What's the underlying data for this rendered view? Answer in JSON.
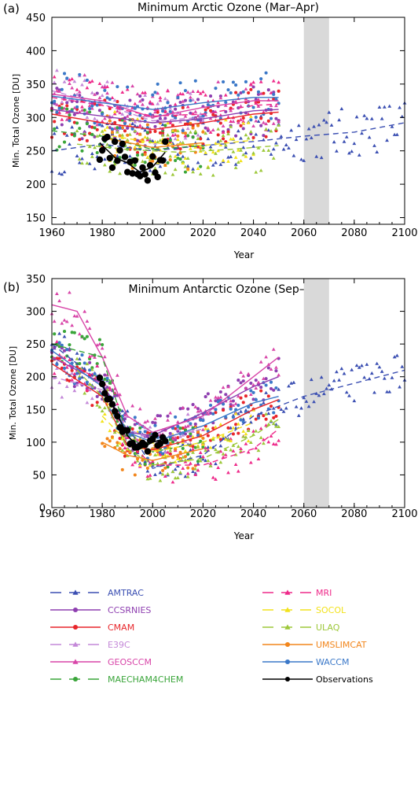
{
  "colors": {
    "AMTRAC": "#3b4fb2",
    "CCSRNIES": "#8e3fb0",
    "CMAM": "#e8262b",
    "E39C": "#c488d8",
    "GEOSCCM": "#d845a8",
    "MAECHAM4CHEM": "#3aa53a",
    "MRI": "#ee2a8a",
    "SOCOL": "#f2e21c",
    "ULAQ": "#9dc83a",
    "UMSLIMCAT": "#f2861c",
    "WACCM": "#3b78c8",
    "Observations": "#000000"
  },
  "chart_data": [
    {
      "type": "scatter",
      "panel_label": "(a)",
      "title": "Minimum Arctic Ozone (Mar–Apr)",
      "xlabel": "Year",
      "ylabel": "Min. Total Ozone [DU]",
      "xlim": [
        1960,
        2100
      ],
      "ylim": [
        140,
        450
      ],
      "xticks": [
        "1960",
        "1980",
        "2000",
        "2020",
        "2040",
        "2060",
        "2080",
        "2100"
      ],
      "yticks": [
        "150",
        "200",
        "250",
        "300",
        "350",
        "400",
        "450"
      ],
      "shaded_span": [
        2060,
        2070
      ],
      "series": [
        {
          "name": "AMTRAC",
          "x": [
            1960,
            1980,
            2000,
            2020,
            2040,
            2060,
            2080,
            2100
          ],
          "y": [
            250,
            260,
            250,
            258,
            264,
            272,
            278,
            292
          ]
        },
        {
          "name": "CCSRNIES",
          "x": [
            1960,
            1980,
            2000,
            2020,
            2040,
            2050
          ],
          "y": [
            312,
            302,
            292,
            298,
            310,
            312
          ]
        },
        {
          "name": "CMAM",
          "x": [
            1960,
            1980,
            2000,
            2020,
            2040,
            2050
          ],
          "y": [
            305,
            292,
            282,
            292,
            305,
            308
          ]
        },
        {
          "name": "E39C",
          "x": [
            1960,
            1980,
            2000,
            2020
          ],
          "y": [
            340,
            320,
            295,
            300
          ]
        },
        {
          "name": "GEOSCCM",
          "x": [
            1960,
            1980,
            2000,
            2020,
            2040,
            2050
          ],
          "y": [
            335,
            325,
            300,
            315,
            325,
            325
          ]
        },
        {
          "name": "MAECHAM4CHEM",
          "x": [
            1960,
            1980,
            2000,
            2020
          ],
          "y": [
            280,
            272,
            252,
            258
          ]
        },
        {
          "name": "MRI",
          "x": [
            1960,
            1980,
            2000,
            2020,
            2040,
            2050
          ],
          "y": [
            330,
            318,
            302,
            305,
            318,
            320
          ]
        },
        {
          "name": "SOCOL",
          "x": [
            1980,
            2000,
            2020,
            2040
          ],
          "y": [
            275,
            262,
            258,
            266
          ]
        },
        {
          "name": "ULAQ",
          "x": [
            1970,
            1990,
            2010,
            2030,
            2050
          ],
          "y": [
            260,
            252,
            248,
            252,
            258
          ]
        },
        {
          "name": "UMSLIMCAT",
          "x": [
            1980,
            2000,
            2020
          ],
          "y": [
            270,
            255,
            262
          ]
        },
        {
          "name": "WACCM",
          "x": [
            1960,
            1980,
            2000,
            2020,
            2040,
            2050
          ],
          "y": [
            332,
            322,
            312,
            322,
            330,
            330
          ]
        },
        {
          "name": "Observations",
          "x": [
            1979,
            1985,
            1990,
            1995,
            2000,
            2005
          ],
          "y": [
            262,
            240,
            232,
            218,
            226,
            248
          ]
        }
      ]
    },
    {
      "type": "scatter",
      "panel_label": "(b)",
      "title": "Minimum Antarctic Ozone (Sep–Oct)",
      "xlabel": "Year",
      "ylabel": "Min. Total Ozone [DU]",
      "xlim": [
        1960,
        2100
      ],
      "ylim": [
        0,
        350
      ],
      "xticks": [
        "1960",
        "1980",
        "2000",
        "2020",
        "2040",
        "2060",
        "2080",
        "2100"
      ],
      "yticks": [
        "0",
        "50",
        "100",
        "150",
        "200",
        "250",
        "300",
        "350"
      ],
      "shaded_span": [
        2060,
        2070
      ],
      "series": [
        {
          "name": "AMTRAC",
          "x": [
            1960,
            1980,
            2000,
            2020,
            2040,
            2060,
            2080,
            2100
          ],
          "y": [
            250,
            190,
            60,
            80,
            140,
            170,
            190,
            210
          ]
        },
        {
          "name": "CCSRNIES",
          "x": [
            1960,
            1980,
            1990,
            2000,
            2020,
            2040,
            2050
          ],
          "y": [
            230,
            190,
            115,
            110,
            145,
            185,
            200
          ]
        },
        {
          "name": "CMAM",
          "x": [
            1960,
            1980,
            1990,
            2000,
            2020,
            2040,
            2050
          ],
          "y": [
            220,
            170,
            95,
            88,
            110,
            150,
            165
          ]
        },
        {
          "name": "E39C",
          "x": [
            1960,
            1980,
            1990,
            2000,
            2020
          ],
          "y": [
            200,
            180,
            120,
            105,
            120
          ]
        },
        {
          "name": "GEOSCCM",
          "x": [
            1960,
            1970,
            1980,
            1990,
            2000,
            2020,
            2040,
            2050
          ],
          "y": [
            310,
            300,
            230,
            140,
            115,
            140,
            200,
            230
          ]
        },
        {
          "name": "MAECHAM4CHEM",
          "x": [
            1960,
            1980,
            1990,
            2000,
            2020
          ],
          "y": [
            250,
            230,
            110,
            85,
            100
          ]
        },
        {
          "name": "MRI",
          "x": [
            1960,
            1980,
            1990,
            2000,
            2020,
            2040,
            2050
          ],
          "y": [
            230,
            195,
            100,
            65,
            65,
            90,
            120
          ]
        },
        {
          "name": "SOCOL",
          "x": [
            1980,
            1990,
            2000,
            2020,
            2040
          ],
          "y": [
            140,
            100,
            85,
            100,
            130
          ]
        },
        {
          "name": "ULAQ",
          "x": [
            1970,
            1980,
            1990,
            2000,
            2020,
            2040,
            2050
          ],
          "y": [
            210,
            170,
            90,
            65,
            75,
            110,
            135
          ]
        },
        {
          "name": "UMSLIMCAT",
          "x": [
            1980,
            1990,
            2000,
            2020
          ],
          "y": [
            100,
            80,
            72,
            90
          ]
        },
        {
          "name": "WACCM",
          "x": [
            1960,
            1980,
            1990,
            2000,
            2020,
            2040,
            2050
          ],
          "y": [
            240,
            185,
            115,
            100,
            125,
            160,
            170
          ]
        },
        {
          "name": "Observations",
          "x": [
            1979,
            1985,
            1990,
            1995,
            2000,
            2005
          ],
          "y": [
            195,
            150,
            110,
            90,
            100,
            105
          ]
        }
      ]
    }
  ],
  "legend": {
    "left": [
      {
        "name": "AMTRAC",
        "style": "dashed",
        "marker": "triangle"
      },
      {
        "name": "CCSRNIES",
        "style": "solid",
        "marker": "circle"
      },
      {
        "name": "CMAM",
        "style": "solid",
        "marker": "circle"
      },
      {
        "name": "E39C",
        "style": "dashed",
        "marker": "triangle"
      },
      {
        "name": "GEOSCCM",
        "style": "solid",
        "marker": "triangle"
      },
      {
        "name": "MAECHAM4CHEM",
        "style": "dashed",
        "marker": "circle"
      }
    ],
    "right": [
      {
        "name": "MRI",
        "style": "dashed",
        "marker": "triangle"
      },
      {
        "name": "SOCOL",
        "style": "dashed",
        "marker": "triangle"
      },
      {
        "name": "ULAQ",
        "style": "dashed",
        "marker": "triangle"
      },
      {
        "name": "UMSLIMCAT",
        "style": "solid",
        "marker": "circle"
      },
      {
        "name": "WACCM",
        "style": "solid",
        "marker": "circle"
      },
      {
        "name": "Observations",
        "style": "solid",
        "marker": "circle"
      }
    ]
  }
}
